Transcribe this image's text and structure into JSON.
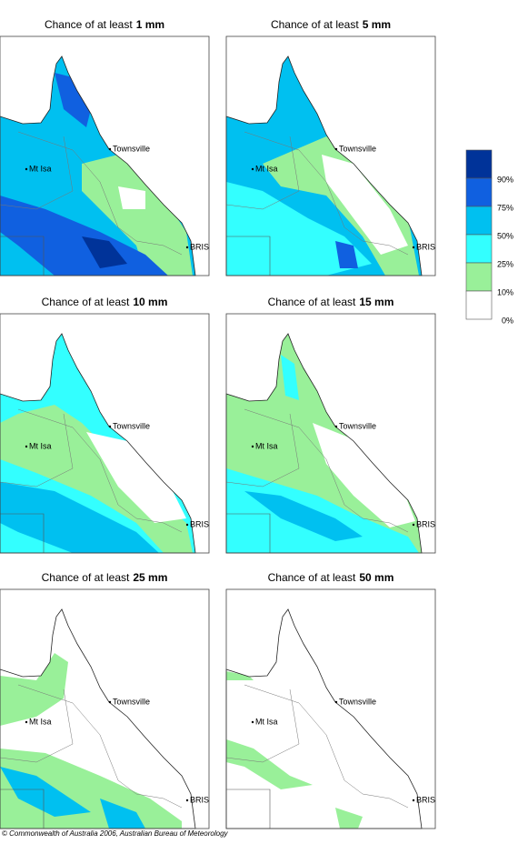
{
  "panels": [
    {
      "title": "Chance of at least",
      "amount": "1 mm"
    },
    {
      "title": "Chance of at least",
      "amount": "5 mm"
    },
    {
      "title": "Chance of at least",
      "amount": "10 mm"
    },
    {
      "title": "Chance of at least",
      "amount": "15 mm"
    },
    {
      "title": "Chance of at least",
      "amount": "25 mm"
    },
    {
      "title": "Chance of at least",
      "amount": "50 mm"
    }
  ],
  "places": {
    "townsville": "Townsville",
    "mt_isa": "Mt Isa",
    "bris": "BRIS"
  },
  "legend": [
    {
      "color": "#003399",
      "label": "90%"
    },
    {
      "color": "#1060e0",
      "label": "75%"
    },
    {
      "color": "#00c0f0",
      "label": "50%"
    },
    {
      "color": "#33ffff",
      "label": "25%"
    },
    {
      "color": "#99f099",
      "label": "10%"
    },
    {
      "color": "#ffffff",
      "label": "0%"
    }
  ],
  "copyright": "© Commonwealth of Australia 2006, Australian Bureau of Meteorology"
}
